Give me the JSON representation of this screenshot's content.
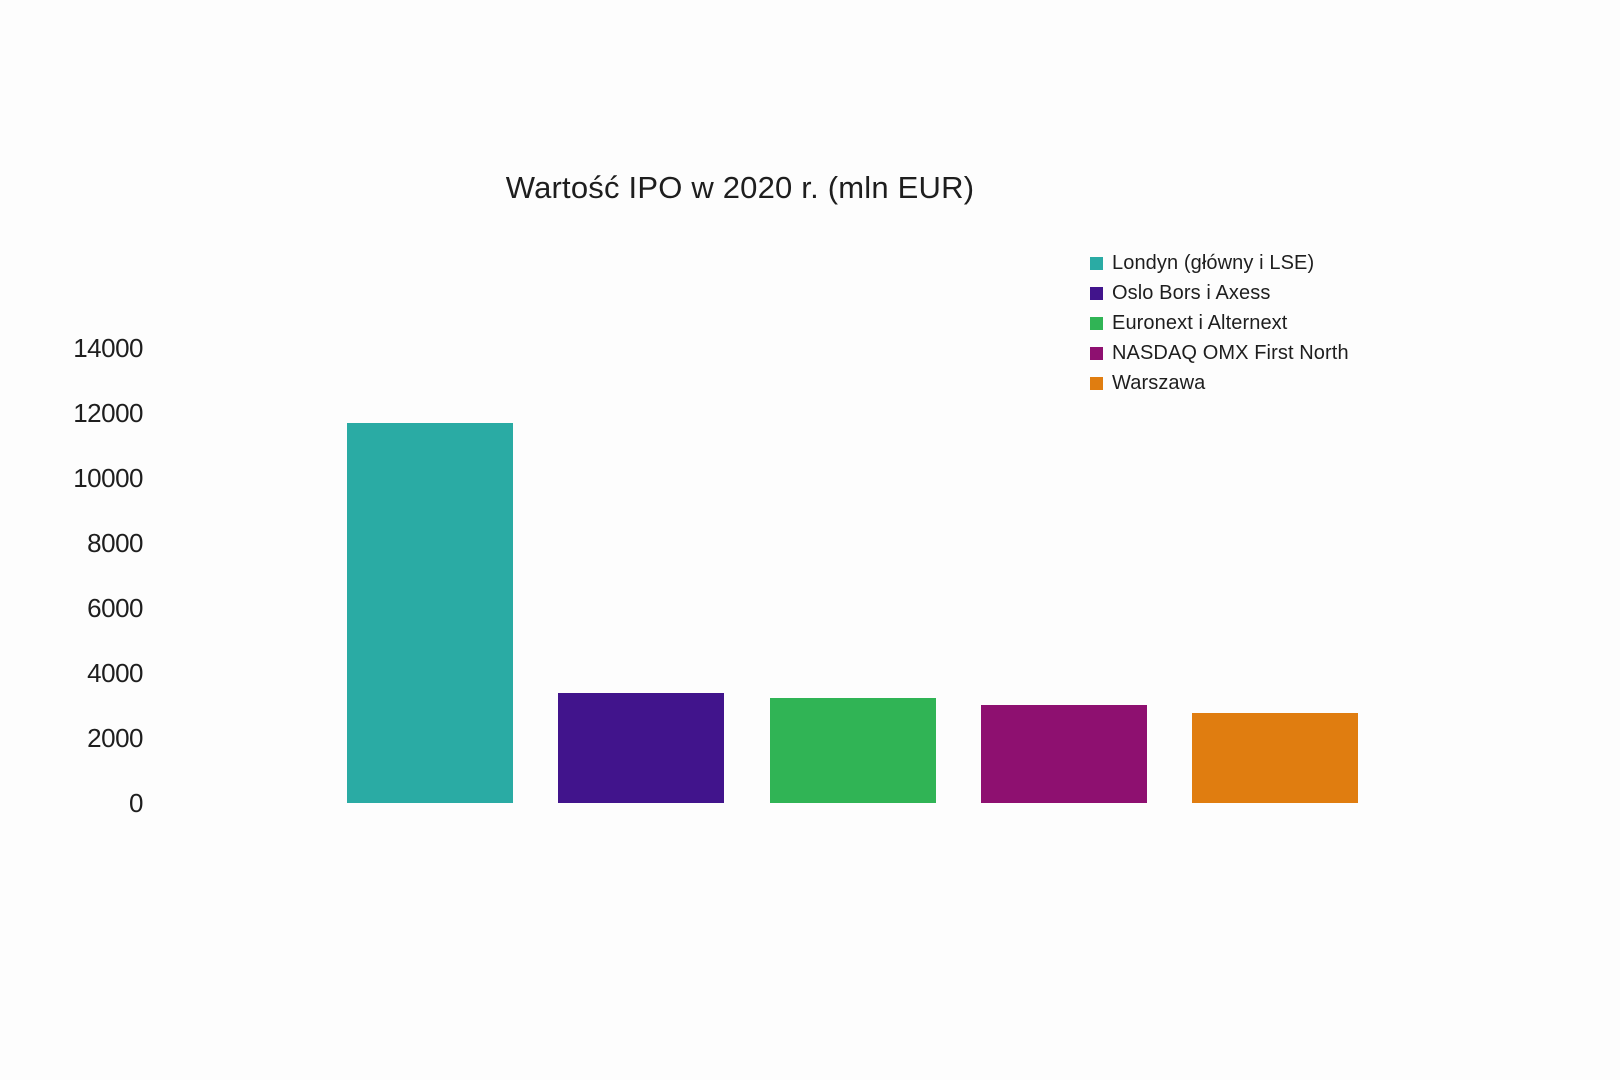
{
  "page": {
    "background": "#fdfdfd",
    "text_color": "#1e1e1e"
  },
  "chart_data": {
    "type": "bar",
    "title": "Wartość IPO w 2020 r. (mln EUR)",
    "categories": [
      "Londyn (główny i LSE)",
      "Oslo Bors i Axess",
      "Euronext i Alternext",
      "NASDAQ OMX First North",
      "Warszawa"
    ],
    "values": [
      11700,
      3380,
      3230,
      3030,
      2780
    ],
    "colors": [
      "#2AABA4",
      "#41148C",
      "#30B455",
      "#8E1070",
      "#E07D10"
    ],
    "xlabel": "",
    "ylabel": "",
    "ylim": [
      0,
      14000
    ],
    "yticks": [
      0,
      2000,
      4000,
      6000,
      8000,
      10000,
      12000,
      14000
    ],
    "grid": false,
    "axis_lines": false,
    "x_tick_labels": false,
    "legend_position": "top-right"
  }
}
